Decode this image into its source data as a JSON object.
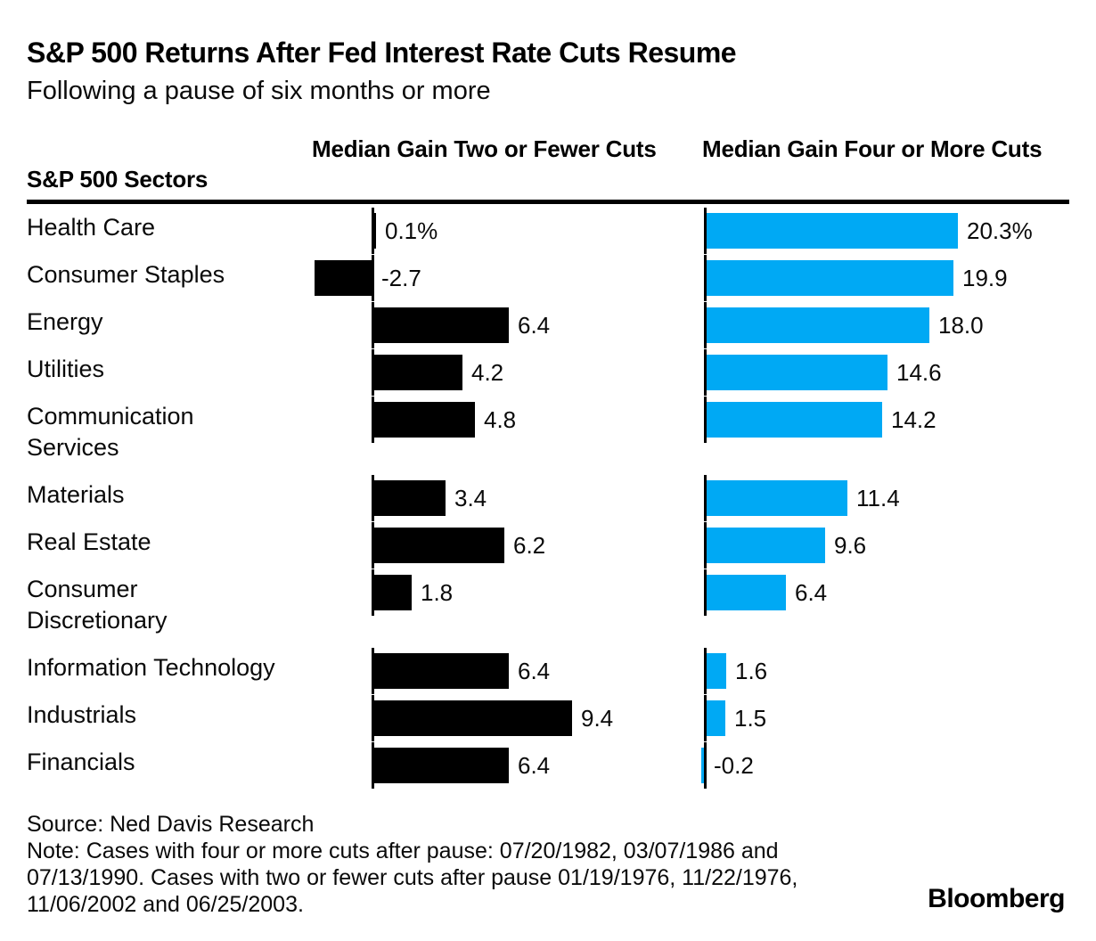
{
  "title": "S&P 500 Returns After Fed Interest Rate Cuts Resume",
  "subtitle": "Following a pause of six months or more",
  "columns": {
    "sectors_header": "S&P 500 Sectors",
    "col1_header": "Median Gain Two or Fewer Cuts",
    "col2_header": "Median Gain Four or More Cuts"
  },
  "chart_data": {
    "type": "bar",
    "orientation": "horizontal",
    "unit": "%",
    "categories": [
      "Health Care",
      "Consumer Staples",
      "Energy",
      "Utilities",
      "Communication\nServices",
      "Materials",
      "Real Estate",
      "Consumer\nDiscretionary",
      "Information Technology",
      "Industrials",
      "Financials"
    ],
    "series": [
      {
        "name": "Median Gain Two or Fewer Cuts",
        "color": "#000000",
        "values": [
          0.1,
          -2.7,
          6.4,
          4.2,
          4.8,
          3.4,
          6.2,
          1.8,
          6.4,
          9.4,
          6.4
        ],
        "labels": [
          "0.1%",
          "-2.7",
          "6.4",
          "4.2",
          "4.8",
          "3.4",
          "6.2",
          "1.8",
          "6.4",
          "9.4",
          "6.4"
        ]
      },
      {
        "name": "Median Gain Four or More Cuts",
        "color": "#00a9f4",
        "values": [
          20.3,
          19.9,
          18.0,
          14.6,
          14.2,
          11.4,
          9.6,
          6.4,
          1.6,
          1.5,
          -0.2
        ],
        "labels": [
          "20.3%",
          "19.9",
          "18.0",
          "14.6",
          "14.2",
          "11.4",
          "9.6",
          "6.4",
          "1.6",
          "1.5",
          "-0.2"
        ]
      }
    ]
  },
  "footer": {
    "source": "Source: Ned Davis Research",
    "note": "Note: Cases with four or more cuts after pause: 07/20/1982, 03/07/1986 and 07/13/1990. Cases with two or fewer cuts after pause 01/19/1976, 11/22/1976, 11/06/2002 and 06/25/2003.",
    "logo": "Bloomberg"
  }
}
